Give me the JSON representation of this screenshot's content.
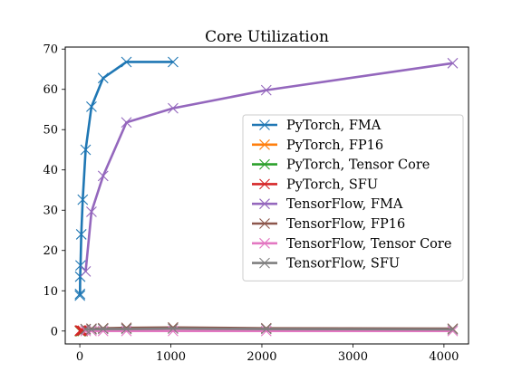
{
  "chart_data": {
    "type": "line",
    "title": "Core Utilization",
    "xlabel": "",
    "ylabel": "",
    "xlim": [
      -160,
      4270
    ],
    "ylim": [
      -3.2,
      70.5
    ],
    "xticks": [
      0,
      1000,
      2000,
      3000,
      4000
    ],
    "yticks": [
      0,
      10,
      20,
      30,
      40,
      50,
      60,
      70
    ],
    "grid": false,
    "legend_position": "center-right",
    "series": [
      {
        "name": "PyTorch, FMA",
        "color": "#1f77b4",
        "x": [
          1,
          2,
          4,
          8,
          16,
          32,
          64,
          128,
          256,
          512,
          1024
        ],
        "y": [
          8.8,
          9.2,
          13.5,
          16.3,
          24.0,
          32.6,
          45.0,
          55.7,
          62.8,
          66.8,
          66.8
        ]
      },
      {
        "name": "PyTorch, FP16",
        "color": "#ff7f0e",
        "x": [
          1,
          2,
          4,
          8,
          16,
          32
        ],
        "y": [
          0,
          0,
          0,
          0,
          0,
          0
        ]
      },
      {
        "name": "PyTorch, Tensor Core",
        "color": "#2ca02c",
        "x": [
          1,
          2,
          4,
          8,
          16,
          32
        ],
        "y": [
          0,
          0,
          0,
          0,
          0,
          0
        ]
      },
      {
        "name": "PyTorch, SFU",
        "color": "#d62728",
        "x": [
          1,
          2,
          4,
          8,
          16,
          32
        ],
        "y": [
          0.1,
          0.1,
          0.1,
          0.1,
          0.1,
          0.1
        ]
      },
      {
        "name": "TensorFlow, FMA",
        "color": "#9467bd",
        "x": [
          64,
          128,
          256,
          512,
          1024,
          2048,
          4096
        ],
        "y": [
          14.8,
          29.6,
          38.5,
          51.8,
          55.3,
          59.8,
          66.5
        ]
      },
      {
        "name": "TensorFlow, FP16",
        "color": "#8c564b",
        "x": [
          64,
          128,
          256,
          512,
          1024,
          2048,
          4096
        ],
        "y": [
          0.5,
          0.6,
          0.7,
          0.8,
          0.9,
          0.7,
          0.6
        ]
      },
      {
        "name": "TensorFlow, Tensor Core",
        "color": "#e377c2",
        "x": [
          64,
          128,
          256,
          512,
          1024,
          2048,
          4096
        ],
        "y": [
          0,
          0,
          0,
          0,
          0,
          0,
          0
        ]
      },
      {
        "name": "TensorFlow, SFU",
        "color": "#7f7f7f",
        "x": [
          64,
          128,
          256,
          512,
          1024,
          2048,
          4096
        ],
        "y": [
          0.4,
          0.4,
          0.5,
          0.5,
          0.6,
          0.5,
          0.4
        ]
      }
    ]
  }
}
